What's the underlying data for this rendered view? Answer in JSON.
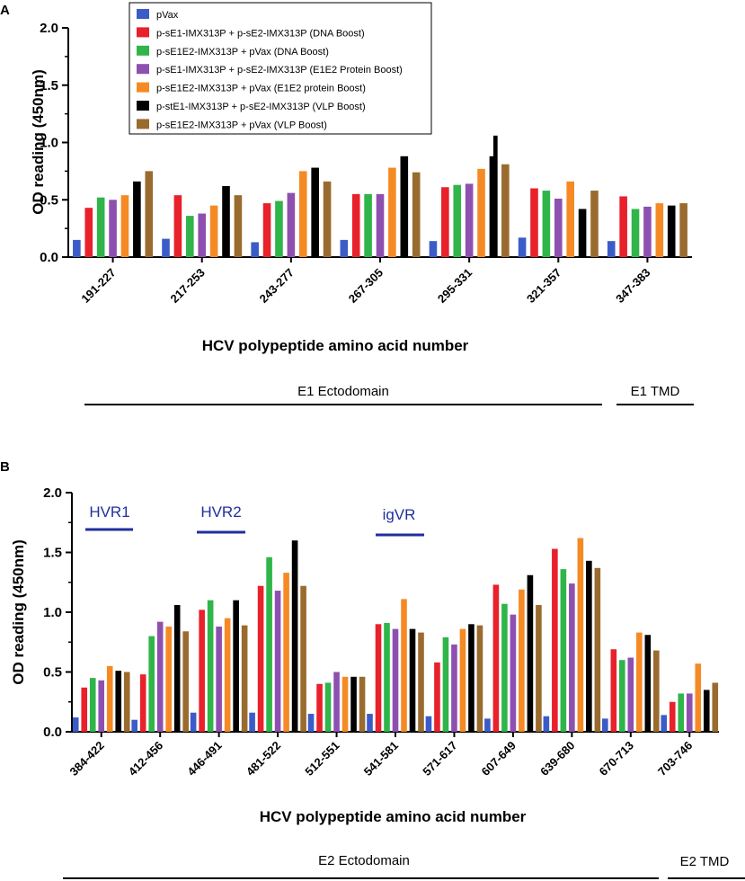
{
  "colors": {
    "pVax": "#3b5cc8",
    "dna_boost_split": "#e8212b",
    "dna_boost_single": "#2fb54a",
    "protein_boost_split": "#8e50b0",
    "protein_boost_single": "#f58a25",
    "vlp_boost_split": "#000000",
    "vlp_boost_single": "#9a6b2e",
    "region_bar": "#1f2f9e"
  },
  "legend": [
    {
      "label": "pVax",
      "color_key": "pVax"
    },
    {
      "label": "p-sE1-IMX313P + p-sE2-IMX313P (DNA Boost)",
      "color_key": "dna_boost_split"
    },
    {
      "label": "p-sE1E2-IMX313P + pVax (DNA Boost)",
      "color_key": "dna_boost_single"
    },
    {
      "label": "p-sE1-IMX313P + p-sE2-IMX313P (E1E2 Protein Boost)",
      "color_key": "protein_boost_split"
    },
    {
      "label": "p-sE1E2-IMX313P + pVax (E1E2 protein Boost)",
      "color_key": "protein_boost_single"
    },
    {
      "label": "p-stE1-IMX313P + p-sE2-IMX313P (VLP Boost)",
      "color_key": "vlp_boost_split"
    },
    {
      "label": "p-sE1E2-IMX313P + pVax (VLP Boost)",
      "color_key": "vlp_boost_single"
    }
  ],
  "chart_data": [
    {
      "panel": "A",
      "type": "bar",
      "ylabel": "OD reading (450nm)",
      "xlabel": "HCV polypeptide amino acid number",
      "ylim": [
        0,
        2.0
      ],
      "yticks": [
        "0.0",
        "0.5",
        "1.0",
        "1.5",
        "2.0"
      ],
      "categories": [
        "191-227",
        "217-253",
        "243-277",
        "267-305",
        "295-331",
        "321-357",
        "347-383"
      ],
      "series": [
        {
          "name": "pVax",
          "values": [
            0.15,
            0.16,
            0.13,
            0.15,
            0.14,
            0.17,
            0.14
          ]
        },
        {
          "name": "p-sE1-IMX313P + p-sE2-IMX313P (DNA Boost)",
          "values": [
            0.43,
            0.54,
            0.47,
            0.55,
            0.61,
            0.6,
            0.53
          ]
        },
        {
          "name": "p-sE1E2-IMX313P + pVax (DNA Boost)",
          "values": [
            0.52,
            0.36,
            0.49,
            0.55,
            0.63,
            0.58,
            0.42
          ]
        },
        {
          "name": "p-sE1-IMX313P + p-sE2-IMX313P (E1E2 Protein Boost)",
          "values": [
            0.5,
            0.38,
            0.56,
            0.55,
            0.64,
            0.51,
            0.44
          ]
        },
        {
          "name": "p-sE1E2-IMX313P + pVax (E1E2 protein Boost)",
          "values": [
            0.54,
            0.45,
            0.75,
            0.78,
            0.77,
            0.66,
            0.47
          ]
        },
        {
          "name": "p-stE1-IMX313P + p-sE2-IMX313P (VLP Boost)",
          "values": [
            0.66,
            0.62,
            0.78,
            0.88,
            [
              0.88,
              1.06
            ],
            0.42,
            0.45
          ]
        },
        {
          "name": "p-sE1E2-IMX313P + pVax (VLP Boost)",
          "values": [
            0.75,
            0.54,
            0.66,
            0.74,
            0.81,
            0.58,
            0.47
          ]
        }
      ],
      "domains": [
        {
          "label": "E1 Ectodomain"
        },
        {
          "label": "E1 TMD"
        }
      ]
    },
    {
      "panel": "B",
      "type": "bar",
      "ylabel": "OD reading (450nm)",
      "xlabel": "HCV polypeptide amino acid number",
      "ylim": [
        0,
        2.0
      ],
      "yticks": [
        "0.0",
        "0.5",
        "1.0",
        "1.5",
        "2.0"
      ],
      "categories": [
        "384-422",
        "412-456",
        "446-491",
        "481-522",
        "512-551",
        "541-581",
        "571-617",
        "607-649",
        "639-680",
        "670-713",
        "703-746"
      ],
      "series": [
        {
          "name": "pVax",
          "values": [
            0.12,
            0.1,
            0.16,
            0.16,
            0.15,
            0.15,
            0.13,
            0.11,
            0.13,
            0.11,
            0.14
          ]
        },
        {
          "name": "p-sE1-IMX313P + p-sE2-IMX313P (DNA Boost)",
          "values": [
            0.37,
            0.48,
            1.02,
            1.22,
            0.4,
            0.9,
            0.58,
            1.23,
            1.53,
            0.69,
            0.25
          ]
        },
        {
          "name": "p-sE1E2-IMX313P + pVax (DNA Boost)",
          "values": [
            0.45,
            0.8,
            1.1,
            1.46,
            0.41,
            0.91,
            0.79,
            1.07,
            1.36,
            0.6,
            0.32
          ]
        },
        {
          "name": "p-sE1-IMX313P + p-sE2-IMX313P (E1E2 Protein Boost)",
          "values": [
            0.43,
            0.92,
            0.88,
            1.18,
            0.5,
            0.86,
            0.73,
            0.98,
            1.24,
            0.62,
            0.32
          ]
        },
        {
          "name": "p-sE1E2-IMX313P + pVax (E1E2 protein Boost)",
          "values": [
            0.55,
            0.88,
            0.95,
            1.33,
            0.46,
            1.11,
            0.86,
            1.19,
            1.62,
            0.83,
            0.57
          ]
        },
        {
          "name": "p-stE1-IMX313P + p-sE2-IMX313P (VLP Boost)",
          "values": [
            0.51,
            1.06,
            1.1,
            1.6,
            0.46,
            0.86,
            0.9,
            1.31,
            1.43,
            0.81,
            0.35
          ]
        },
        {
          "name": "p-sE1E2-IMX313P + pVax (VLP Boost)",
          "values": [
            0.5,
            0.84,
            0.89,
            1.22,
            0.46,
            0.83,
            0.89,
            1.06,
            1.37,
            0.68,
            0.41
          ]
        }
      ],
      "regions": [
        {
          "label": "HVR1"
        },
        {
          "label": "HVR2"
        },
        {
          "label": "igVR"
        }
      ],
      "domains": [
        {
          "label": "E2 Ectodomain"
        },
        {
          "label": "E2 TMD"
        }
      ]
    }
  ]
}
